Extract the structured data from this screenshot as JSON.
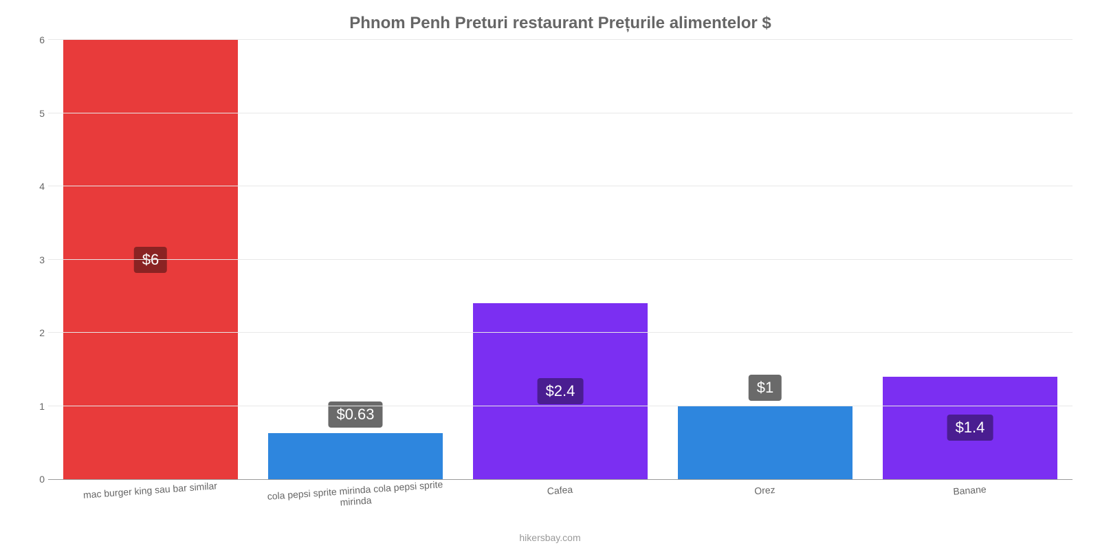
{
  "chart": {
    "type": "bar",
    "title": "Phnom Penh Preturi restaurant Prețurile alimentelor $",
    "title_fontsize": 24,
    "title_color": "#666666",
    "background_color": "#ffffff",
    "ylim": [
      0,
      6
    ],
    "yticks": [
      0,
      1,
      2,
      3,
      4,
      5,
      6
    ],
    "ytick_fontsize": 14,
    "ytick_color": "#666666",
    "grid_color": "#e8e8e8",
    "axis_color": "#999999",
    "bar_width_ratio": 0.85,
    "value_label_fontsize": 22,
    "value_label_text_color": "#ffffff",
    "value_label_border_radius": 4,
    "xlabel_fontsize": 14,
    "xlabel_color": "#666666",
    "xlabel_rotation_deg": -4,
    "categories": [
      "mac burger king sau bar similar",
      "cola pepsi sprite mirinda cola pepsi sprite mirinda",
      "Cafea",
      "Orez",
      "Banane"
    ],
    "values": [
      6,
      0.63,
      2.4,
      1,
      1.4
    ],
    "value_labels": [
      "$6",
      "$0.63",
      "$2.4",
      "$1",
      "$1.4"
    ],
    "bar_colors": [
      "#e83b3b",
      "#2e86de",
      "#7b2ff2",
      "#2e86de",
      "#7b2ff2"
    ],
    "value_label_bg_colors": [
      "#8a2323",
      "#6a6a6a",
      "#4a1d91",
      "#6a6a6a",
      "#4a1d91"
    ],
    "value_label_positions": [
      "inside",
      "above",
      "inside",
      "above",
      "inside"
    ],
    "footer": "hikersbay.com",
    "footer_color": "#999999",
    "footer_fontsize": 14
  }
}
